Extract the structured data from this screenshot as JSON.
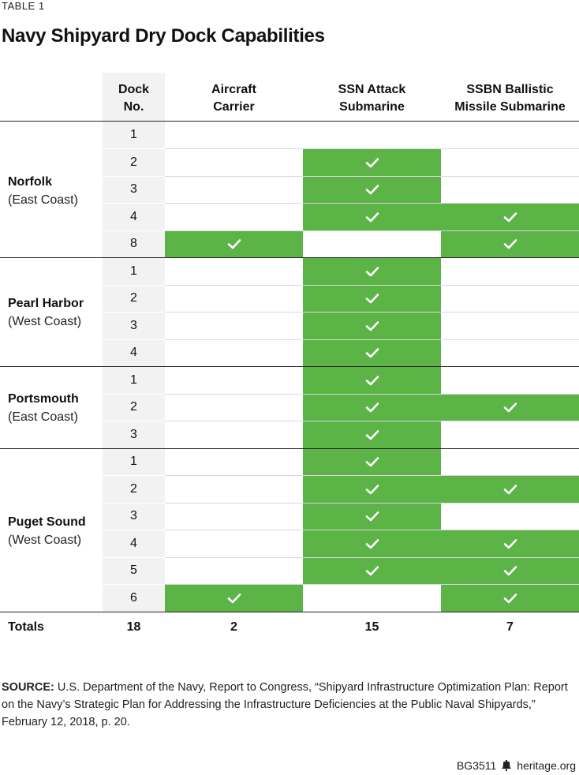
{
  "table_label": "TABLE 1",
  "title": "Navy Shipyard Dry Dock Capabilities",
  "headers": {
    "dock_line1": "Dock",
    "dock_line2": "No.",
    "carrier_line1": "Aircraft",
    "carrier_line2": "Carrier",
    "ssn_line1": "SSN Attack",
    "ssn_line2": "Submarine",
    "ssbn_line1": "SSBN Ballistic",
    "ssbn_line2": "Missile Submarine"
  },
  "shipyards": [
    {
      "name": "Norfolk",
      "coast": "(East Coast)"
    },
    {
      "name": "Pearl Harbor",
      "coast": "(West Coast)"
    },
    {
      "name": "Portsmouth",
      "coast": "(East Coast)"
    },
    {
      "name": "Puget Sound",
      "coast": "(West Coast)"
    }
  ],
  "rows": [
    {
      "dock": "1",
      "carrier": false,
      "ssn": false,
      "ssbn": false
    },
    {
      "dock": "2",
      "carrier": false,
      "ssn": true,
      "ssbn": false
    },
    {
      "dock": "3",
      "carrier": false,
      "ssn": true,
      "ssbn": false
    },
    {
      "dock": "4",
      "carrier": false,
      "ssn": true,
      "ssbn": true
    },
    {
      "dock": "8",
      "carrier": true,
      "ssn": false,
      "ssbn": true
    },
    {
      "dock": "1",
      "carrier": false,
      "ssn": true,
      "ssbn": false
    },
    {
      "dock": "2",
      "carrier": false,
      "ssn": true,
      "ssbn": false
    },
    {
      "dock": "3",
      "carrier": false,
      "ssn": true,
      "ssbn": false
    },
    {
      "dock": "4",
      "carrier": false,
      "ssn": true,
      "ssbn": false
    },
    {
      "dock": "1",
      "carrier": false,
      "ssn": true,
      "ssbn": false
    },
    {
      "dock": "2",
      "carrier": false,
      "ssn": true,
      "ssbn": true
    },
    {
      "dock": "3",
      "carrier": false,
      "ssn": true,
      "ssbn": false
    },
    {
      "dock": "1",
      "carrier": false,
      "ssn": true,
      "ssbn": false
    },
    {
      "dock": "2",
      "carrier": false,
      "ssn": true,
      "ssbn": true
    },
    {
      "dock": "3",
      "carrier": false,
      "ssn": true,
      "ssbn": false
    },
    {
      "dock": "4",
      "carrier": false,
      "ssn": true,
      "ssbn": true
    },
    {
      "dock": "5",
      "carrier": false,
      "ssn": true,
      "ssbn": true
    },
    {
      "dock": "6",
      "carrier": true,
      "ssn": false,
      "ssbn": true
    }
  ],
  "totals": {
    "label": "Totals",
    "dock": "18",
    "carrier": "2",
    "ssn": "15",
    "ssbn": "7"
  },
  "source": {
    "label": "SOURCE:",
    "text": "U.S. Department of the Navy, Report to Congress, “Shipyard Infrastructure Optimization Plan: Report on the Navy’s Strategic Plan for Addressing the Infrastructure Deficiencies at the Public Naval Shipyards,” February 12, 2018, p. 20."
  },
  "footer": {
    "code": "BG3511",
    "site": "heritage.org"
  },
  "colors": {
    "check_fill": "#5cb346",
    "dock_column": "#f2f2f2"
  },
  "icons": {
    "check": "check-icon",
    "liberty_bell": "liberty-bell-icon"
  }
}
